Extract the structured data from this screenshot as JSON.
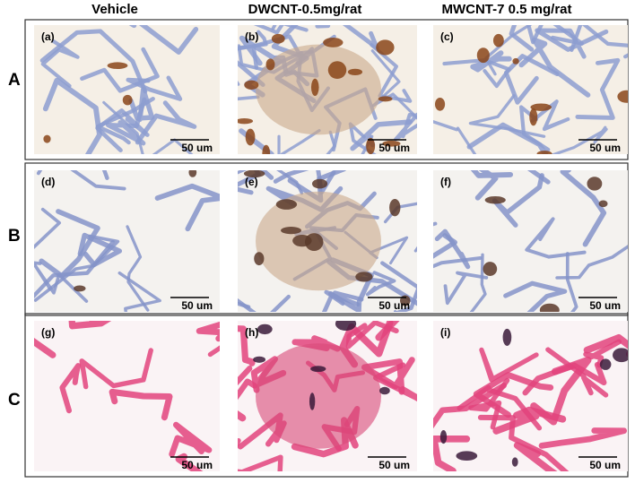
{
  "columns": [
    "Vehicle",
    "DWCNT-0.5mg/rat",
    "MWCNT-7 0.5 mg/rat"
  ],
  "rows": [
    {
      "label": "A",
      "panels": [
        {
          "label": "(a)",
          "scale": "50 um"
        },
        {
          "label": "(b)",
          "scale": "50 um"
        },
        {
          "label": "(c)",
          "scale": "50 um"
        }
      ]
    },
    {
      "label": "B",
      "panels": [
        {
          "label": "(d)",
          "scale": "50 um"
        },
        {
          "label": "(e)",
          "scale": "50 um"
        },
        {
          "label": "(f)",
          "scale": "50 um"
        }
      ]
    },
    {
      "label": "C",
      "panels": [
        {
          "label": "(g)",
          "scale": "50 um"
        },
        {
          "label": "(h)",
          "scale": "50 um"
        },
        {
          "label": "(i)",
          "scale": "50 um"
        }
      ]
    }
  ]
}
